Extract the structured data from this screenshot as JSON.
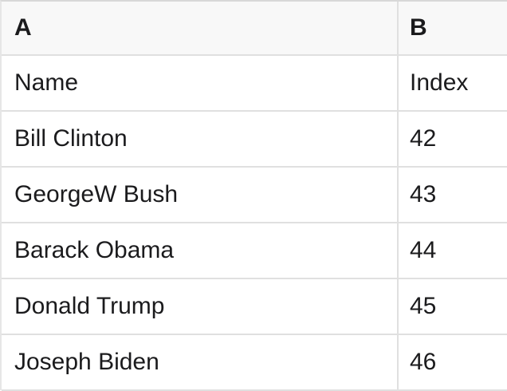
{
  "table": {
    "column_headers": [
      {
        "label": "A"
      },
      {
        "label": "B"
      }
    ],
    "field_headers": {
      "a": "Name",
      "b": "Index"
    },
    "rows": [
      {
        "a": "Bill Clinton",
        "b": "42"
      },
      {
        "a": "GeorgeW Bush",
        "b": "43"
      },
      {
        "a": "Barack Obama",
        "b": "44"
      },
      {
        "a": "Donald Trump",
        "b": "45"
      },
      {
        "a": "Joseph Biden",
        "b": "46"
      }
    ],
    "colors": {
      "header_bg": "#f8f8f8",
      "cell_bg": "#ffffff",
      "grid_border": "#e0e0e0",
      "top_border": "#d8d8d8",
      "left_border": "#e6e6e6",
      "text": "#1b1b1d"
    }
  }
}
